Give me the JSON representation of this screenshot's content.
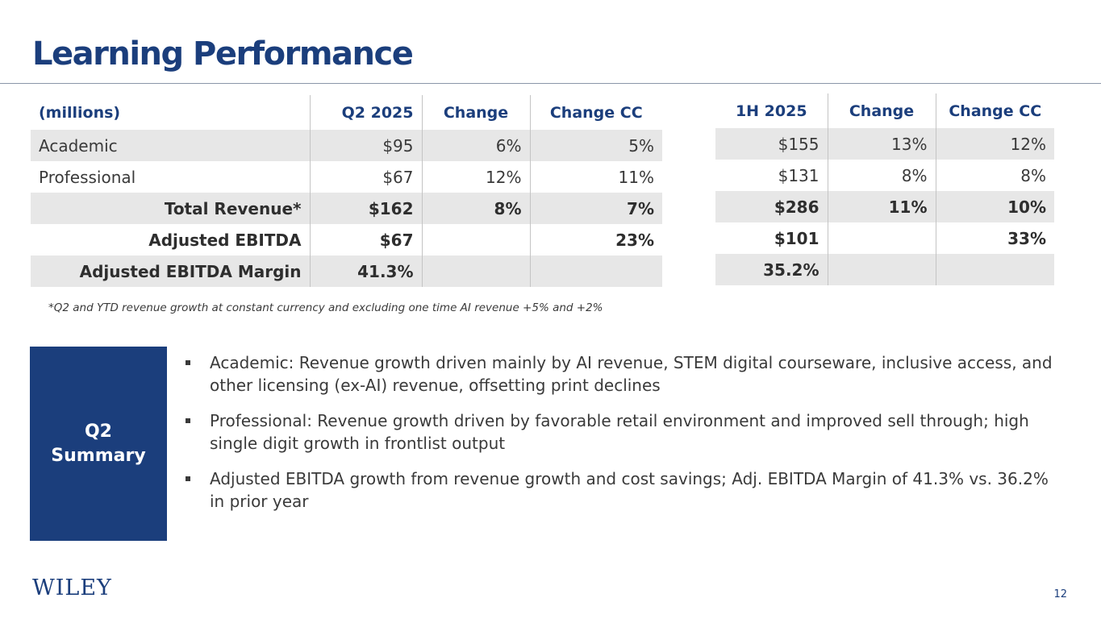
{
  "title": "Learning Performance",
  "q2_table": {
    "headers": [
      "(millions)",
      "Q2 2025",
      "Change",
      "Change CC"
    ],
    "rows": [
      {
        "label": "Academic",
        "q2": "$95",
        "change": "6%",
        "change_cc": "5%"
      },
      {
        "label": "Professional",
        "q2": "$67",
        "change": "12%",
        "change_cc": "11%"
      },
      {
        "label": "Total Revenue*",
        "q2": "$162",
        "change": "8%",
        "change_cc": "7%"
      },
      {
        "label": "Adjusted EBITDA",
        "q2": "$67",
        "change": "",
        "change_cc": "23%"
      },
      {
        "label": "Adjusted EBITDA Margin",
        "q2": "41.3%",
        "change": "",
        "change_cc": ""
      }
    ]
  },
  "h1_table": {
    "headers": [
      "1H 2025",
      "Change",
      "Change CC"
    ],
    "rows": [
      {
        "h1": "$155",
        "change": "13%",
        "change_cc": "12%"
      },
      {
        "h1": "$131",
        "change": "8%",
        "change_cc": "8%"
      },
      {
        "h1": "$286",
        "change": "11%",
        "change_cc": "10%"
      },
      {
        "h1": "$101",
        "change": "",
        "change_cc": "33%"
      },
      {
        "h1": "35.2%",
        "change": "",
        "change_cc": ""
      }
    ]
  },
  "footnote": "*Q2 and YTD revenue growth at constant currency and excluding one time AI revenue +5% and +2%",
  "summary": {
    "label_line1": "Q2",
    "label_line2": "Summary",
    "bullets": [
      "Academic:  Revenue growth driven mainly by AI revenue, STEM digital courseware, inclusive access, and other licensing (ex-AI) revenue, offsetting print declines",
      "Professional:  Revenue growth driven by favorable retail environment and improved sell through; high single digit growth in frontlist output",
      "Adjusted EBITDA growth from revenue growth and cost savings; Adj. EBITDA Margin of 41.3% vs. 36.2% in prior year"
    ]
  },
  "logo": "WILEY",
  "page_number": "12",
  "colors": {
    "brand_blue": "#1b3e7c",
    "row_shade": "#e7e7e7"
  }
}
